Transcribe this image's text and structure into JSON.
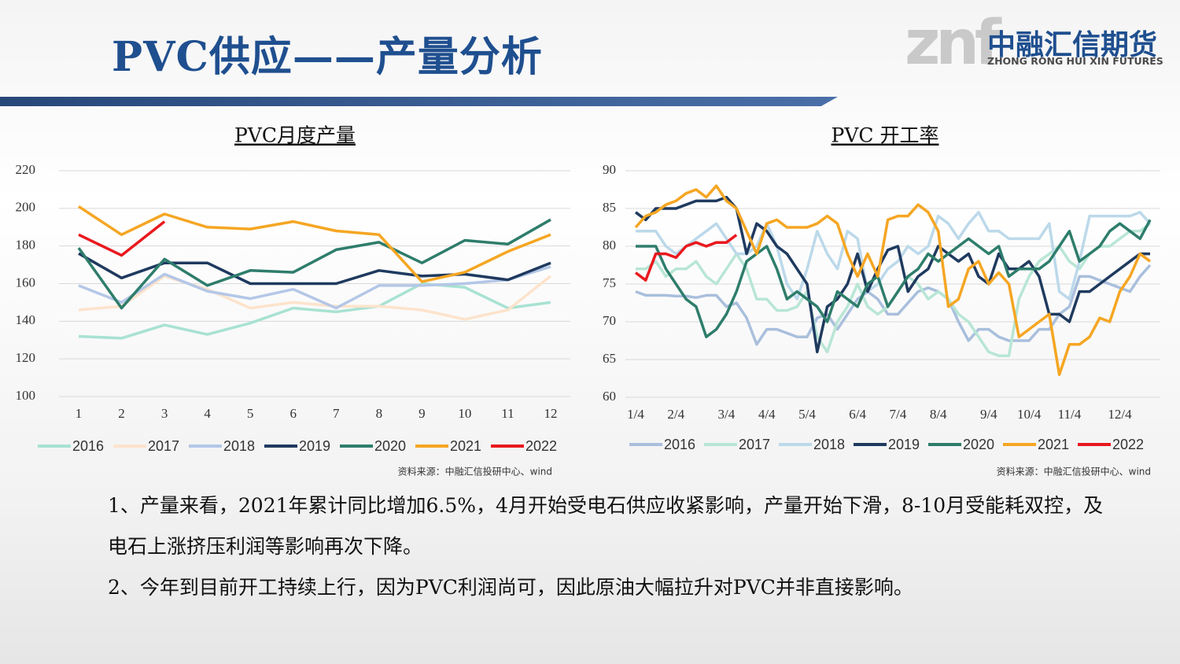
{
  "header": {
    "title": "PVC供应——产量分析",
    "logo_mark": "znf",
    "logo_cn": "中融汇信期货",
    "logo_en": "ZHONG RONG HUI XIN FUTURES"
  },
  "chart_data": [
    {
      "type": "line",
      "title": "PVC月度产量",
      "source": "资料来源：中融汇信投研中心、wind",
      "categories": [
        "1",
        "2",
        "3",
        "4",
        "5",
        "6",
        "7",
        "8",
        "9",
        "10",
        "11",
        "12"
      ],
      "ylim": [
        100,
        220
      ],
      "yticks": [
        100,
        120,
        140,
        160,
        180,
        200,
        220
      ],
      "grid": true,
      "legend": "bottom",
      "series": [
        {
          "name": "2016",
          "color": "#a8e2d2",
          "values": [
            132,
            131,
            138,
            133,
            139,
            147,
            145,
            148,
            160,
            158,
            147,
            150
          ]
        },
        {
          "name": "2017",
          "color": "#fde3cc",
          "values": [
            146,
            148,
            164,
            157,
            147,
            150,
            148,
            148,
            146,
            141,
            146,
            164
          ]
        },
        {
          "name": "2018",
          "color": "#b4c7e7",
          "values": [
            159,
            150,
            165,
            156,
            152,
            157,
            147,
            159,
            159,
            160,
            162,
            169
          ]
        },
        {
          "name": "2019",
          "color": "#1f3a5f",
          "values": [
            176,
            163,
            171,
            171,
            160,
            160,
            160,
            167,
            164,
            165,
            162,
            171
          ]
        },
        {
          "name": "2020",
          "color": "#2e7d6b",
          "values": [
            179,
            147,
            173,
            159,
            167,
            166,
            178,
            182,
            171,
            183,
            181,
            194
          ]
        },
        {
          "name": "2021",
          "color": "#f5a623",
          "values": [
            201,
            186,
            197,
            190,
            189,
            193,
            188,
            186,
            161,
            166,
            177,
            186
          ]
        },
        {
          "name": "2022",
          "color": "#e8191e",
          "values": [
            186,
            175,
            193,
            null,
            null,
            null,
            null,
            null,
            null,
            null,
            null,
            null
          ]
        }
      ]
    },
    {
      "type": "line",
      "title": "PVC 开工率",
      "source": "资料来源：中融汇信投研中心、wind",
      "categories": [
        "1/4",
        null,
        null,
        null,
        "2/4",
        null,
        null,
        null,
        null,
        "3/4",
        null,
        null,
        null,
        "4/4",
        null,
        null,
        null,
        "5/4",
        null,
        null,
        null,
        null,
        "6/4",
        null,
        null,
        null,
        "7/4",
        null,
        null,
        null,
        "8/4",
        null,
        null,
        null,
        null,
        "9/4",
        null,
        null,
        null,
        "10/4",
        null,
        null,
        null,
        "11/4",
        null,
        null,
        null,
        null,
        "12/4",
        null,
        null,
        null
      ],
      "ylim": [
        60,
        90
      ],
      "yticks": [
        60,
        65,
        70,
        75,
        80,
        85,
        90
      ],
      "grid": true,
      "legend": "bottom",
      "series": [
        {
          "name": "2016",
          "color": "#a9bfdc",
          "values": [
            74,
            73.5,
            73.5,
            73.5,
            73.4,
            73.4,
            73.2,
            73.5,
            73.5,
            72,
            72.5,
            70.5,
            67,
            69,
            69,
            68.5,
            68,
            68,
            70.5,
            71,
            69,
            71,
            73,
            74,
            73,
            71,
            71,
            72.5,
            74,
            74.5,
            74,
            73,
            70,
            67.5,
            69,
            69,
            68,
            67.5,
            67.5,
            67.5,
            69,
            69,
            71,
            72,
            76,
            76,
            75.5,
            75,
            74.5,
            74,
            76,
            77.5
          ]
        },
        {
          "name": "2017",
          "color": "#b8e6d5",
          "values": [
            77,
            77,
            78,
            76,
            77,
            77,
            78,
            76,
            75,
            77,
            79,
            77,
            73,
            73,
            71.5,
            71.5,
            72,
            74,
            68,
            66,
            70,
            72,
            75,
            72,
            71,
            72,
            74,
            76,
            75,
            73,
            74,
            73,
            71,
            70,
            68,
            66,
            65.5,
            65.5,
            73,
            76,
            78,
            79,
            80,
            78,
            77,
            79,
            80,
            80,
            81,
            82,
            82,
            83
          ]
        },
        {
          "name": "2018",
          "color": "#bcd9ea",
          "values": [
            82,
            82,
            82,
            80,
            79,
            80,
            81,
            82,
            83,
            81,
            79,
            79,
            80,
            83,
            80,
            75,
            73,
            77,
            82,
            79,
            77,
            82,
            81,
            74,
            75,
            77,
            78,
            80,
            79,
            80,
            84,
            83,
            81,
            83,
            84.5,
            82,
            82,
            81,
            81,
            81,
            81,
            83,
            74,
            73,
            78,
            84,
            84,
            84,
            84,
            84,
            84.5,
            83
          ]
        },
        {
          "name": "2019",
          "color": "#1f3a5f",
          "values": [
            84.5,
            83.5,
            85,
            85,
            85,
            85.5,
            86,
            86,
            86,
            86.5,
            85,
            79,
            83,
            82,
            80,
            79,
            77,
            75,
            66,
            72,
            73,
            75,
            79,
            74,
            77,
            79.5,
            80,
            74,
            76,
            77,
            80,
            79,
            78,
            79,
            76,
            75,
            79,
            77,
            77,
            78,
            76,
            71,
            71,
            70,
            74,
            74,
            75,
            76,
            77,
            78,
            79,
            79
          ]
        },
        {
          "name": "2020",
          "color": "#2e7d6b",
          "values": [
            80,
            80,
            80,
            77,
            75,
            73,
            72,
            68,
            69,
            71,
            74,
            78,
            79,
            80,
            77,
            73,
            74,
            73,
            72,
            70,
            74,
            73,
            72,
            75,
            76,
            72,
            74,
            76,
            77,
            79,
            78,
            79,
            80,
            81,
            80,
            79,
            80,
            76,
            77,
            77,
            77,
            78,
            80,
            82,
            78,
            79,
            80,
            82,
            83,
            82,
            81,
            83.5
          ]
        },
        {
          "name": "2021",
          "color": "#f5a623",
          "values": [
            82.5,
            84,
            84.5,
            85.5,
            86,
            87,
            87.5,
            86.5,
            88,
            86,
            85,
            82,
            79,
            83,
            83.5,
            82.5,
            82.5,
            82.5,
            83,
            84,
            83,
            79,
            76,
            79,
            76,
            83.5,
            84,
            84,
            85.5,
            84.5,
            82,
            72,
            73,
            77,
            78,
            75,
            76.5,
            75,
            68,
            69,
            70,
            71,
            63,
            67,
            67,
            68,
            70.5,
            70,
            74,
            76,
            79,
            78
          ]
        },
        {
          "name": "2022",
          "color": "#e8191e",
          "values": [
            76.5,
            75.5,
            79,
            79,
            78.5,
            80,
            80.5,
            80,
            80.5,
            80.5,
            81.5,
            null,
            null,
            null,
            null,
            null,
            null,
            null,
            null,
            null,
            null,
            null,
            null,
            null,
            null,
            null,
            null,
            null,
            null,
            null,
            null,
            null,
            null,
            null,
            null,
            null,
            null,
            null,
            null,
            null,
            null,
            null,
            null,
            null,
            null,
            null,
            null,
            null,
            null,
            null,
            null,
            null
          ]
        }
      ]
    }
  ],
  "text": [
    "1、产量来看，2021年累计同比增加6.5%，4月开始受电石供应收紧影响，产量开始下滑，8-10月受能耗双控，及电石上涨挤压利润等影响再次下降。",
    "2、今年到目前开工持续上行，因为PVC利润尚可，因此原油大幅拉升对PVC并非直接影响。"
  ]
}
